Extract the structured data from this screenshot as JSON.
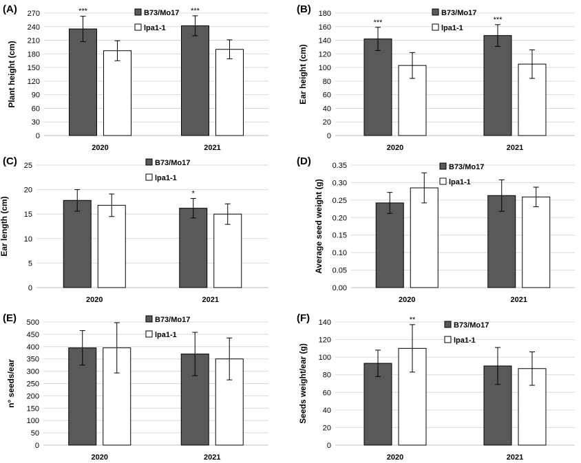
{
  "colors": {
    "B73_Mo17": "#595959",
    "lpa1_1": "#ffffff",
    "bar_outline": "#000000",
    "grid": "#d9d9d9"
  },
  "chart_data": [
    {
      "panel": "(A)",
      "type": "bar",
      "categories": [
        "2020",
        "2021"
      ],
      "ylabel": "Plant height (cm)",
      "ylim": [
        0,
        270
      ],
      "yticks": [
        0,
        30,
        60,
        90,
        120,
        150,
        180,
        210,
        240,
        270
      ],
      "series": [
        {
          "name": "B73/Mo17",
          "values": [
            235,
            242
          ],
          "errors": [
            28,
            22
          ],
          "significance": [
            "***",
            "***"
          ]
        },
        {
          "name": "lpa1-1",
          "values": [
            187,
            190
          ],
          "errors": [
            22,
            21
          ],
          "significance": [
            "",
            ""
          ]
        }
      ],
      "legend": "top-right",
      "grid": true
    },
    {
      "panel": "(B)",
      "type": "bar",
      "categories": [
        "2020",
        "2021"
      ],
      "ylabel": "Ear height (cm)",
      "ylim": [
        0,
        180
      ],
      "yticks": [
        0,
        20,
        40,
        60,
        80,
        100,
        120,
        140,
        160,
        180
      ],
      "series": [
        {
          "name": "B73/Mo17",
          "values": [
            142,
            147
          ],
          "errors": [
            17,
            16
          ],
          "significance": [
            "***",
            "***"
          ]
        },
        {
          "name": "lpa1-1",
          "values": [
            103,
            105
          ],
          "errors": [
            19,
            21
          ],
          "significance": [
            "",
            ""
          ]
        }
      ],
      "legend": "top-right",
      "grid": true
    },
    {
      "panel": "(C)",
      "type": "bar",
      "categories": [
        "2020",
        "2021"
      ],
      "ylabel": "Ear length (cm)",
      "ylim": [
        0,
        25
      ],
      "yticks": [
        0,
        5,
        10,
        15,
        20,
        25
      ],
      "series": [
        {
          "name": "B73/Mo17",
          "values": [
            17.8,
            16.2
          ],
          "errors": [
            2.2,
            2.0
          ],
          "significance": [
            "",
            "*"
          ]
        },
        {
          "name": "lpa1-1",
          "values": [
            16.8,
            15.0
          ],
          "errors": [
            2.3,
            2.1
          ],
          "significance": [
            "",
            ""
          ]
        }
      ],
      "legend": "top-right",
      "grid": true
    },
    {
      "panel": "(D)",
      "type": "bar",
      "categories": [
        "2020",
        "2021"
      ],
      "ylabel": "Average seed weight (g)",
      "ylim": [
        0,
        0.35
      ],
      "yticks": [
        "0.00",
        "0.05",
        "0.10",
        "0.15",
        "0.20",
        "0.25",
        "0.30",
        "0.35"
      ],
      "series": [
        {
          "name": "B73/Mo17",
          "values": [
            0.242,
            0.263
          ],
          "errors": [
            0.03,
            0.045
          ],
          "significance": [
            "",
            ""
          ]
        },
        {
          "name": "lpa1-1",
          "values": [
            0.285,
            0.259
          ],
          "errors": [
            0.043,
            0.028
          ],
          "significance": [
            "",
            ""
          ]
        }
      ],
      "legend": "top-right",
      "grid": true
    },
    {
      "panel": "(E)",
      "type": "bar",
      "categories": [
        "2020",
        "2021"
      ],
      "ylabel": "n° seeds/ear",
      "ylim": [
        0,
        500
      ],
      "yticks": [
        0,
        50,
        100,
        150,
        200,
        250,
        300,
        350,
        400,
        450,
        500
      ],
      "series": [
        {
          "name": "B73/Mo17",
          "values": [
            395,
            370
          ],
          "errors": [
            70,
            88
          ],
          "significance": [
            "",
            ""
          ]
        },
        {
          "name": "lpa1-1",
          "values": [
            395,
            350
          ],
          "errors": [
            102,
            85
          ],
          "significance": [
            "",
            ""
          ]
        }
      ],
      "legend": "top-right",
      "grid": true
    },
    {
      "panel": "(F)",
      "type": "bar",
      "categories": [
        "2020",
        "2021"
      ],
      "ylabel": "Seeds weight/ear (g)",
      "ylim": [
        0,
        140
      ],
      "yticks": [
        0,
        20,
        40,
        60,
        80,
        100,
        120,
        140
      ],
      "series": [
        {
          "name": "B73/Mo17",
          "values": [
            93,
            90
          ],
          "errors": [
            15,
            21
          ],
          "significance": [
            "",
            ""
          ]
        },
        {
          "name": "lpa1-1",
          "values": [
            110,
            87
          ],
          "errors": [
            27,
            19
          ],
          "significance": [
            "**",
            ""
          ]
        }
      ],
      "legend": "top-right",
      "grid": true
    }
  ]
}
